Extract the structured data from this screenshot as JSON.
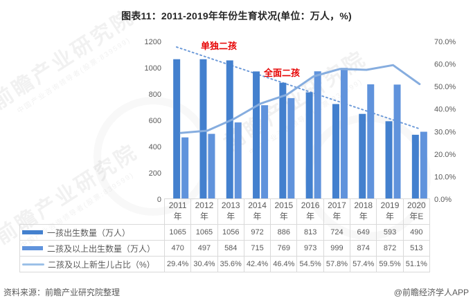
{
  "title": "图表11：2011-2019年年份生育状况(单位：万人，%)",
  "watermark": {
    "main": "前瞻产业研究院",
    "sub": "中国产业咨询领导者(股票:839599)"
  },
  "chart_data": {
    "type": "bar",
    "title": "图表11：2011-2019年年份生育状况(单位：万人，%)",
    "categories": [
      "2011年",
      "2012年",
      "2013年",
      "2014年",
      "2015年",
      "2016年",
      "2017年",
      "2018年",
      "2019年",
      "2020年E"
    ],
    "series": [
      {
        "name": "一孩出生数量（万人）",
        "type": "bar",
        "axis": "left",
        "color": "#4380CE",
        "values": [
          1065,
          1065,
          1056,
          972,
          886,
          813,
          724,
          649,
          593,
          490
        ]
      },
      {
        "name": "二孩及以上出生数量（万人）",
        "type": "bar",
        "axis": "left",
        "color": "#6093DC",
        "values": [
          470,
          497,
          584,
          715,
          769,
          973,
          999,
          874,
          872,
          513
        ]
      },
      {
        "name": "二孩及以上新生儿占比（%）",
        "type": "line",
        "axis": "right",
        "color": "#86ADDF",
        "values": [
          29.4,
          30.4,
          35.6,
          42.4,
          46.4,
          54.5,
          57.8,
          57.4,
          59.5,
          51.1
        ]
      }
    ],
    "left_axis": {
      "min": 0,
      "max": 1200,
      "step": 200,
      "ticks": [
        "0",
        "200",
        "400",
        "600",
        "800",
        "1000",
        "1200"
      ]
    },
    "right_axis": {
      "min": 0,
      "max": 70,
      "step": 10,
      "ticks": [
        "0.0%",
        "10.0%",
        "20.0%",
        "30.0%",
        "40.0%",
        "50.0%",
        "60.0%",
        "70.0%"
      ]
    },
    "annotations": [
      {
        "text": "单独二孩",
        "color": "#E60000"
      },
      {
        "text": "全面二孩",
        "color": "#E60000"
      }
    ],
    "trend_line": {
      "style": "dotted",
      "color": "#6E9BD9",
      "description": "declining trend of first-child births"
    },
    "grid": false,
    "legend_position": "bottom-table"
  },
  "table": {
    "header": [
      {
        "line1": "2011",
        "line2": "年"
      },
      {
        "line1": "2012",
        "line2": "年"
      },
      {
        "line1": "2013",
        "line2": "年"
      },
      {
        "line1": "2014",
        "line2": "年"
      },
      {
        "line1": "2015",
        "line2": "年"
      },
      {
        "line1": "2016",
        "line2": "年"
      },
      {
        "line1": "2017",
        "line2": "年"
      },
      {
        "line1": "2018",
        "line2": "年"
      },
      {
        "line1": "2019",
        "line2": "年"
      },
      {
        "line1": "2020",
        "line2": "年E"
      }
    ],
    "rows": [
      {
        "legend": "一孩出生数量（万人）",
        "swatch": "bar",
        "color": "#4380CE",
        "values": [
          "1065",
          "1065",
          "1056",
          "972",
          "886",
          "813",
          "724",
          "649",
          "593",
          "490"
        ]
      },
      {
        "legend": "二孩及以上出生数量（万人）",
        "swatch": "bar",
        "color": "#6093DC",
        "values": [
          "470",
          "497",
          "584",
          "715",
          "769",
          "973",
          "999",
          "874",
          "872",
          "513"
        ]
      },
      {
        "legend": "二孩及以上新生儿占比（%）",
        "swatch": "line",
        "color": "#9CC0E7",
        "values": [
          "29.4%",
          "30.4%",
          "35.6%",
          "42.4%",
          "46.4%",
          "54.5%",
          "57.8%",
          "57.4%",
          "59.5%",
          "51.1%"
        ]
      }
    ]
  },
  "footer": {
    "source": "资料来源：前瞻产业研究院整理",
    "credit": "@前瞻经济学人APP"
  }
}
